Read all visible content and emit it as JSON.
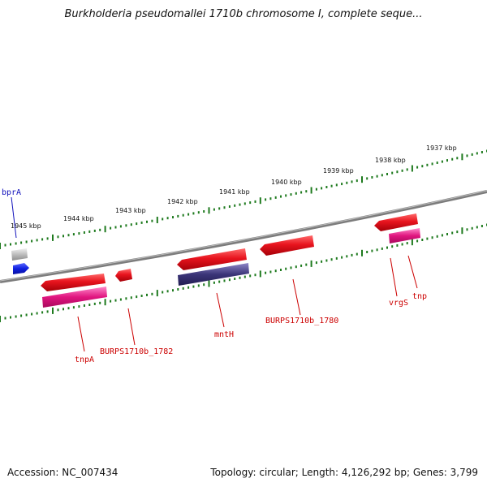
{
  "title": "Burkholderia pseudomallei 1710b chromosome I, complete seque...",
  "colors": {
    "backbone": "#7a7a7a",
    "tick": "#1e7a1e",
    "gene_red": "#e8141e",
    "gene_pink": "#e0157f",
    "gene_navy": "#3b3578",
    "gene_gray": "#b9b9b9",
    "gene_blue": "#1020e0",
    "label_red": "#cc0000",
    "label_blue": "#1010bb"
  },
  "scale_labels": [
    {
      "name": "scale-label-1945",
      "text": "1945 kbp"
    },
    {
      "name": "scale-label-1944",
      "text": "1944 kbp"
    },
    {
      "name": "scale-label-1943",
      "text": "1943 kbp"
    },
    {
      "name": "scale-label-1942",
      "text": "1942 kbp"
    },
    {
      "name": "scale-label-1941",
      "text": "1941 kbp"
    },
    {
      "name": "scale-label-1940",
      "text": "1940 kbp"
    },
    {
      "name": "scale-label-1939",
      "text": "1939 kbp"
    },
    {
      "name": "scale-label-1938",
      "text": "1938 kbp"
    },
    {
      "name": "scale-label-1937",
      "text": "1937 kbp"
    }
  ],
  "genes": [
    {
      "name": "gene-label-bprA",
      "label": "bprA",
      "color": "label_blue"
    },
    {
      "name": "gene-label-tnpA",
      "label": "tnpA",
      "color": "label_red"
    },
    {
      "name": "gene-label-BURPS1710b_1782",
      "label": "BURPS1710b_1782",
      "color": "label_red"
    },
    {
      "name": "gene-label-mntH",
      "label": "mntH",
      "color": "label_red"
    },
    {
      "name": "gene-label-BURPS1710b_1780",
      "label": "BURPS1710b_1780",
      "color": "label_red"
    },
    {
      "name": "gene-label-vrgS",
      "label": "vrgS",
      "color": "label_red"
    },
    {
      "name": "gene-label-tnp",
      "label": "tnp",
      "color": "label_red"
    }
  ],
  "footer": {
    "accession": "Accession: NC_007434",
    "summary": "Topology: circular; Length: 4,126,292 bp; Genes: 3,799"
  }
}
